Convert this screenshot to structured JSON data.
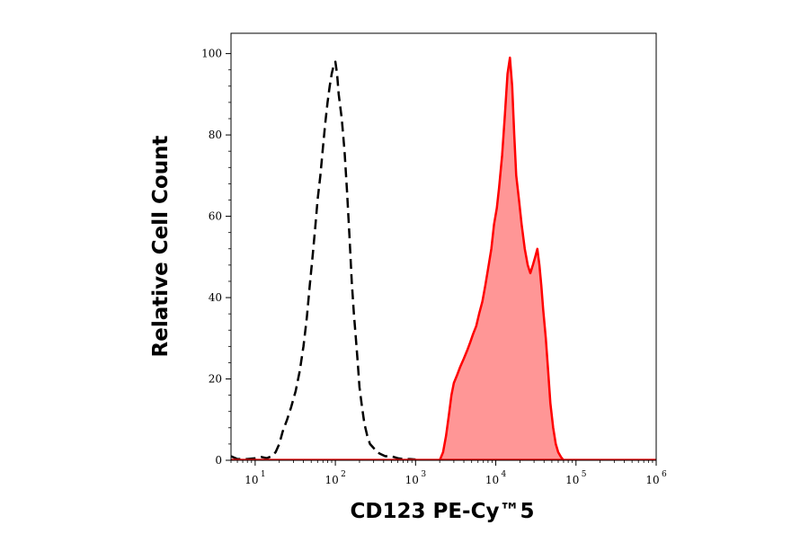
{
  "chart_data": {
    "type": "area",
    "title": "",
    "xlabel": "CD123 PE-Cy™5",
    "ylabel": "Relative Cell Count",
    "xscale": "log",
    "xlim": [
      5,
      1000000
    ],
    "ylim": [
      0,
      105
    ],
    "grid": false,
    "legend": "none",
    "x_ticks": [
      {
        "value": 10,
        "base": "10",
        "exp": "1"
      },
      {
        "value": 100,
        "base": "10",
        "exp": "2"
      },
      {
        "value": 1000,
        "base": "10",
        "exp": "3"
      },
      {
        "value": 10000,
        "base": "10",
        "exp": "4"
      },
      {
        "value": 100000,
        "base": "10",
        "exp": "5"
      },
      {
        "value": 1000000,
        "base": "10",
        "exp": "6"
      }
    ],
    "y_ticks": [
      {
        "value": 0,
        "label": "0"
      },
      {
        "value": 20,
        "label": "20"
      },
      {
        "value": 40,
        "label": "40"
      },
      {
        "value": 60,
        "label": "60"
      },
      {
        "value": 80,
        "label": "80"
      },
      {
        "value": 100,
        "label": "100"
      }
    ],
    "series": [
      {
        "style": "dashed",
        "color": "#000000",
        "points": [
          [
            5,
            1
          ],
          [
            6,
            0.3
          ],
          [
            8,
            0.3
          ],
          [
            10,
            0.5
          ],
          [
            12,
            0.8
          ],
          [
            14,
            0.5
          ],
          [
            16,
            1
          ],
          [
            18,
            2
          ],
          [
            20,
            4
          ],
          [
            22,
            7
          ],
          [
            25,
            10
          ],
          [
            28,
            13
          ],
          [
            32,
            17
          ],
          [
            36,
            22
          ],
          [
            40,
            28
          ],
          [
            44,
            35
          ],
          [
            48,
            43
          ],
          [
            52,
            50
          ],
          [
            56,
            57
          ],
          [
            60,
            64
          ],
          [
            65,
            70
          ],
          [
            70,
            77
          ],
          [
            75,
            83
          ],
          [
            80,
            88
          ],
          [
            85,
            92
          ],
          [
            90,
            95
          ],
          [
            95,
            97
          ],
          [
            100,
            98
          ],
          [
            105,
            95
          ],
          [
            110,
            90
          ],
          [
            120,
            84
          ],
          [
            130,
            76
          ],
          [
            140,
            66
          ],
          [
            150,
            55
          ],
          [
            160,
            44
          ],
          [
            170,
            36
          ],
          [
            180,
            30
          ],
          [
            190,
            24
          ],
          [
            200,
            18
          ],
          [
            215,
            13
          ],
          [
            230,
            9
          ],
          [
            250,
            6
          ],
          [
            270,
            4
          ],
          [
            300,
            3
          ],
          [
            330,
            2
          ],
          [
            370,
            1.5
          ],
          [
            420,
            1
          ],
          [
            500,
            1
          ],
          [
            600,
            0.5
          ],
          [
            700,
            0.3
          ],
          [
            850,
            0.3
          ],
          [
            1000,
            0.2
          ]
        ]
      },
      {
        "style": "filled",
        "color": "#ff0000",
        "fill": "#ff9696",
        "points": [
          [
            2000,
            0
          ],
          [
            2200,
            2
          ],
          [
            2400,
            6
          ],
          [
            2600,
            11
          ],
          [
            2800,
            16
          ],
          [
            3000,
            19
          ],
          [
            3300,
            21
          ],
          [
            3600,
            23
          ],
          [
            4000,
            25
          ],
          [
            4400,
            27
          ],
          [
            4800,
            29
          ],
          [
            5200,
            31
          ],
          [
            5700,
            33
          ],
          [
            6200,
            36
          ],
          [
            6800,
            39
          ],
          [
            7400,
            43
          ],
          [
            8000,
            47
          ],
          [
            8800,
            52
          ],
          [
            9500,
            58
          ],
          [
            10300,
            62
          ],
          [
            11000,
            67
          ],
          [
            12000,
            75
          ],
          [
            13000,
            85
          ],
          [
            14000,
            95
          ],
          [
            15000,
            99
          ],
          [
            16000,
            92
          ],
          [
            17000,
            80
          ],
          [
            18000,
            70
          ],
          [
            19500,
            64
          ],
          [
            21000,
            58
          ],
          [
            23000,
            52
          ],
          [
            25000,
            48
          ],
          [
            27000,
            46
          ],
          [
            29000,
            48
          ],
          [
            31000,
            50
          ],
          [
            33000,
            52
          ],
          [
            35000,
            48
          ],
          [
            37000,
            43
          ],
          [
            39000,
            37
          ],
          [
            42000,
            30
          ],
          [
            45000,
            22
          ],
          [
            48000,
            14
          ],
          [
            52000,
            8
          ],
          [
            56000,
            4
          ],
          [
            60000,
            2
          ],
          [
            65000,
            0.8
          ],
          [
            70000,
            0
          ]
        ]
      }
    ]
  }
}
